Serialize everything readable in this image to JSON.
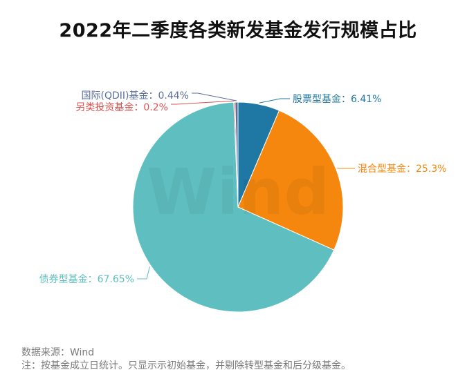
{
  "chart_data": {
    "type": "pie",
    "title": "2022年二季度各类新发基金发行规模占比",
    "slices": [
      {
        "label": "股票型基金",
        "value": 6.41,
        "display": "股票型基金：6.41%",
        "color": "#1f77a4"
      },
      {
        "label": "混合型基金",
        "value": 25.3,
        "display": "混合型基金：25.3%",
        "color": "#f5870f"
      },
      {
        "label": "债券型基金",
        "value": 67.65,
        "display": "债券型基金：67.65%",
        "color": "#5fbfc0"
      },
      {
        "label": "另类投资基金",
        "value": 0.2,
        "display": "另类投资基金：0.2%",
        "color": "#d9534f"
      },
      {
        "label": "国际(QDII)基金",
        "value": 0.44,
        "display": "国际(QDII)基金：0.44%",
        "color": "#5a6e9c"
      }
    ]
  },
  "watermark": "Wind",
  "footer": {
    "source": "数据来源：Wind",
    "note": "注：按基金成立日统计。只显示示初始基金，并剔除转型基金和后分级基金。"
  }
}
